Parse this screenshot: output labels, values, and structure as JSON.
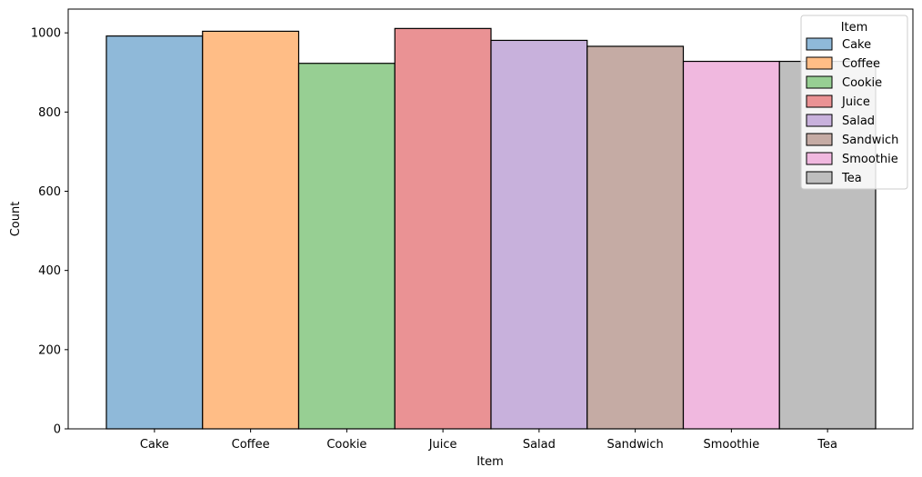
{
  "chart_data": {
    "type": "bar",
    "title": "",
    "xlabel": "Item",
    "ylabel": "Count",
    "categories": [
      "Cake",
      "Coffee",
      "Cookie",
      "Juice",
      "Salad",
      "Sandwich",
      "Smoothie",
      "Tea"
    ],
    "values": [
      992,
      1004,
      923,
      1011,
      981,
      966,
      928,
      928
    ],
    "colors": [
      "#8fb9d9",
      "#ffbd86",
      "#97cf93",
      "#ea9294",
      "#c8b1dc",
      "#c5aba4",
      "#f0b8df",
      "#bebebe"
    ],
    "ylim": [
      0,
      1060
    ],
    "yticks": [
      0,
      200,
      400,
      600,
      800,
      1000
    ],
    "grid": false,
    "legend": {
      "title": "Item",
      "placement": "top-right",
      "entries": [
        "Cake",
        "Coffee",
        "Cookie",
        "Juice",
        "Salad",
        "Sandwich",
        "Smoothie",
        "Tea"
      ]
    }
  }
}
